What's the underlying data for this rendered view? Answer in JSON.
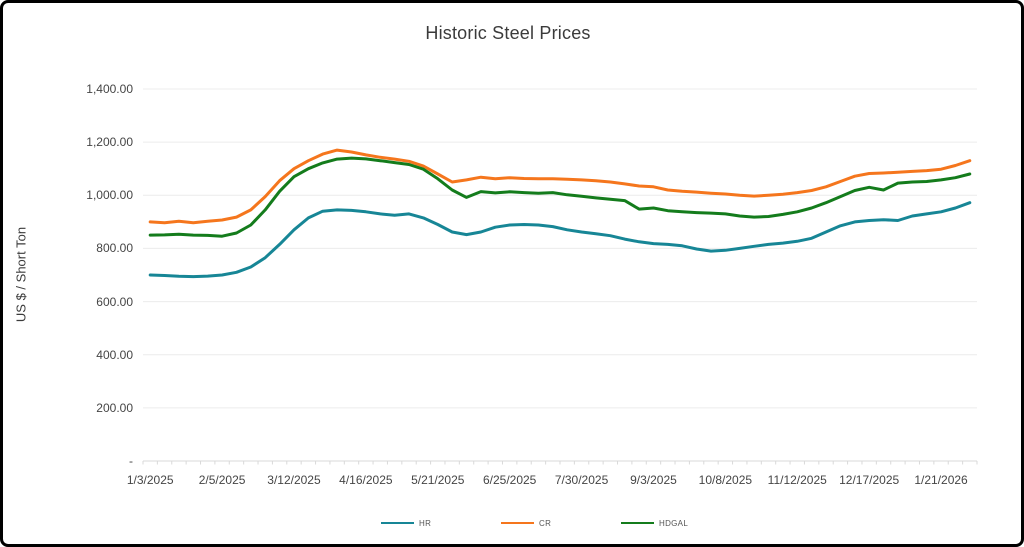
{
  "frame": {
    "border_color": "#000000",
    "background": "#ffffff"
  },
  "chart": {
    "title": "Historic Steel Prices",
    "y_axis_title": "US $ / Short Ton",
    "y_tick_labels": [
      "1,400.00",
      "1,200.00",
      "1,000.00",
      "800.00",
      "600.00",
      "400.00",
      "200.00",
      "-"
    ],
    "x_tick_labels": [
      "1/3/2025",
      "2/5/2025",
      "3/12/2025",
      "4/16/2025",
      "5/21/2025",
      "6/25/2025",
      "7/30/2025",
      "9/3/2025",
      "10/8/2025",
      "11/12/2025",
      "12/17/2025",
      "1/21/2026"
    ],
    "grid_color": "#ECECEC",
    "axis_line_color": "#D9D9D9",
    "tick_text_color": "#454545"
  },
  "chart_data": {
    "type": "line",
    "title": "Historic Steel Prices",
    "ylabel": "US $ / Short Ton",
    "ylim": [
      0,
      1400
    ],
    "y_tick_step": 200,
    "grid": "horizontal",
    "legend_position": "bottom",
    "x_label_every": 5,
    "x": [
      "1/3/2025",
      "1/8/2025",
      "1/15/2025",
      "1/22/2025",
      "1/29/2025",
      "2/5/2025",
      "2/12/2025",
      "2/19/2025",
      "2/26/2025",
      "3/5/2025",
      "3/12/2025",
      "3/19/2025",
      "3/26/2025",
      "4/2/2025",
      "4/9/2025",
      "4/16/2025",
      "4/23/2025",
      "4/30/2025",
      "5/7/2025",
      "5/14/2025",
      "5/21/2025",
      "5/28/2025",
      "6/4/2025",
      "6/11/2025",
      "6/18/2025",
      "6/25/2025",
      "7/2/2025",
      "7/9/2025",
      "7/16/2025",
      "7/23/2025",
      "7/30/2025",
      "8/6/2025",
      "8/13/2025",
      "8/20/2025",
      "8/27/2025",
      "9/3/2025",
      "9/10/2025",
      "9/17/2025",
      "9/24/2025",
      "10/1/2025",
      "10/8/2025",
      "10/15/2025",
      "10/22/2025",
      "10/29/2025",
      "11/5/2025",
      "11/12/2025",
      "11/19/2025",
      "11/26/2025",
      "12/3/2025",
      "12/10/2025",
      "12/17/2025",
      "12/24/2025",
      "12/31/2025",
      "1/7/2026",
      "1/14/2026",
      "1/21/2026",
      "1/28/2026",
      "2/4/2026"
    ],
    "series": [
      {
        "name": "HR",
        "color": "#178696",
        "values": [
          700,
          698,
          695,
          694,
          696,
          700,
          710,
          730,
          765,
          815,
          870,
          915,
          940,
          945,
          943,
          938,
          930,
          925,
          930,
          915,
          890,
          862,
          852,
          862,
          880,
          888,
          890,
          888,
          882,
          870,
          862,
          855,
          848,
          835,
          825,
          818,
          815,
          810,
          798,
          790,
          793,
          800,
          808,
          815,
          820,
          827,
          838,
          862,
          885,
          900,
          905,
          908,
          905,
          922,
          930,
          938,
          952,
          972
        ]
      },
      {
        "name": "CR",
        "color": "#F5761D",
        "values": [
          900,
          897,
          902,
          897,
          902,
          907,
          918,
          945,
          995,
          1055,
          1100,
          1130,
          1155,
          1170,
          1163,
          1152,
          1143,
          1136,
          1128,
          1110,
          1080,
          1050,
          1058,
          1068,
          1062,
          1066,
          1063,
          1062,
          1062,
          1060,
          1058,
          1055,
          1050,
          1043,
          1035,
          1032,
          1020,
          1015,
          1012,
          1008,
          1005,
          1000,
          997,
          1000,
          1004,
          1010,
          1018,
          1032,
          1052,
          1072,
          1082,
          1084,
          1087,
          1090,
          1093,
          1098,
          1112,
          1130
        ]
      },
      {
        "name": "HDGAL",
        "color": "#147C1C",
        "values": [
          850,
          851,
          853,
          850,
          849,
          846,
          858,
          888,
          945,
          1015,
          1070,
          1100,
          1122,
          1136,
          1140,
          1137,
          1130,
          1123,
          1116,
          1098,
          1062,
          1020,
          992,
          1014,
          1009,
          1013,
          1010,
          1008,
          1010,
          1002,
          996,
          990,
          985,
          980,
          948,
          952,
          942,
          938,
          935,
          933,
          930,
          922,
          918,
          920,
          928,
          938,
          952,
          972,
          995,
          1018,
          1030,
          1020,
          1046,
          1050,
          1052,
          1058,
          1066,
          1080
        ]
      }
    ]
  }
}
